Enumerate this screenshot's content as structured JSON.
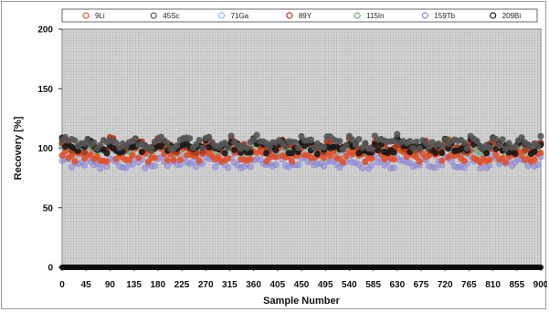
{
  "chart_data": {
    "type": "scatter",
    "xlabel": "Sample Number",
    "ylabel": "Recovery [%]",
    "xlim": [
      0,
      900
    ],
    "ylim": [
      0,
      200
    ],
    "x_ticks": [
      0,
      45,
      90,
      135,
      180,
      225,
      270,
      315,
      360,
      405,
      450,
      495,
      540,
      585,
      630,
      675,
      720,
      765,
      810,
      855,
      900
    ],
    "y_ticks": [
      0,
      50,
      100,
      150,
      200
    ],
    "grid": true,
    "legend_position": "top",
    "series": [
      {
        "name": "9Li",
        "color": "#e0502a",
        "level": 92,
        "spread": 4
      },
      {
        "name": "45Sc",
        "color": "#555555",
        "level": 103,
        "spread": 4
      },
      {
        "name": "71Ga",
        "color": "#8fb7e0",
        "level": 97,
        "spread": 3
      },
      {
        "name": "89Y",
        "color": "#b03a1a",
        "level": 100,
        "spread": 4
      },
      {
        "name": "115In",
        "color": "#6fa96f",
        "level": 98,
        "spread": 3
      },
      {
        "name": "159Tb",
        "color": "#8a86d8",
        "level": 86,
        "spread": 3
      },
      {
        "name": "209Bi",
        "color": "#1a1a1a",
        "level": 99,
        "spread": 4
      }
    ],
    "baseline_series_value": 0
  }
}
